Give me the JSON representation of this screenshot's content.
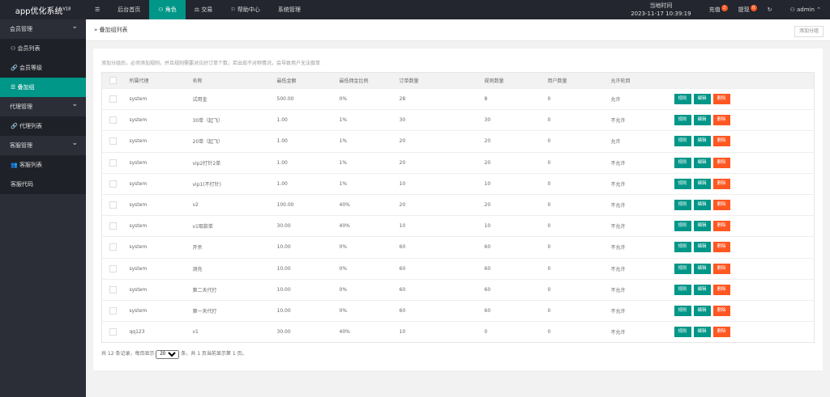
{
  "header": {
    "logo": "app优化系统",
    "version": "V18",
    "menu_icon": "menu-icon",
    "nav": [
      "后台首页",
      "角色",
      "交易",
      "帮助中心",
      "系统管理"
    ],
    "time_label": "当地时间",
    "time": "2023-11-17 10:39:19",
    "recharge": "充值",
    "recharge_badge": "2",
    "withdraw": "提现",
    "withdraw_badge": "0",
    "user": "admin"
  },
  "sidebar": [
    {
      "group": "会员管理",
      "items": [
        "会员列表",
        "会员等级",
        "叠加组"
      ]
    },
    {
      "group": "代理管理",
      "items": [
        "代理列表"
      ]
    },
    {
      "group": "客服管理",
      "items": [
        "客服列表",
        "客服代码"
      ]
    }
  ],
  "breadcrumb": "叠加组列表",
  "add_button": "添加分组",
  "tip": "添加分组后，必须添加规则，并且规则需要对应好订单个数，若出现不对称情况，会导致用户无法做单",
  "columns": [
    "所属代理",
    "名称",
    "最低金额",
    "最低佣金比例",
    "订单数量",
    "规则数量",
    "用户数量",
    "允许轮回"
  ],
  "actions": [
    "规则",
    "编辑",
    "删除"
  ],
  "rows": [
    [
      "system",
      "试用金",
      "500.00",
      "0%",
      "28",
      "8",
      "0",
      "允许"
    ],
    [
      "system",
      "30单（起飞）",
      "1.00",
      "1%",
      "30",
      "30",
      "0",
      "不允许"
    ],
    [
      "system",
      "20单（起飞）",
      "1.00",
      "1%",
      "20",
      "20",
      "0",
      "允许"
    ],
    [
      "system",
      "vip2打针2单",
      "1.00",
      "1%",
      "20",
      "20",
      "0",
      "不允许"
    ],
    [
      "system",
      "vip1(不打针)",
      "1.00",
      "1%",
      "10",
      "10",
      "0",
      "不允许"
    ],
    [
      "system",
      "v2",
      "100.00",
      "40%",
      "20",
      "20",
      "0",
      "不允许"
    ],
    [
      "system",
      "v1取款单",
      "30.00",
      "40%",
      "10",
      "10",
      "0",
      "不允许"
    ],
    [
      "system",
      "开杀",
      "10.00",
      "0%",
      "60",
      "60",
      "0",
      "不允许"
    ],
    [
      "system",
      "测充",
      "10.00",
      "0%",
      "60",
      "60",
      "0",
      "不允许"
    ],
    [
      "system",
      "第二天代打",
      "10.00",
      "0%",
      "60",
      "60",
      "0",
      "不允许"
    ],
    [
      "system",
      "第一天代打",
      "10.00",
      "0%",
      "60",
      "60",
      "0",
      "不允许"
    ],
    [
      "qq123",
      "v1",
      "30.00",
      "40%",
      "10",
      "0",
      "0",
      "不允许"
    ]
  ],
  "footer": {
    "prefix": "共 12 条记录，每页显示",
    "page_size": "20",
    "suffix": "条，共 1 页当前显示第 1 页。"
  },
  "colors": {
    "accent": "#009688",
    "danger": "#ff5722",
    "topbar": "#23262e"
  }
}
